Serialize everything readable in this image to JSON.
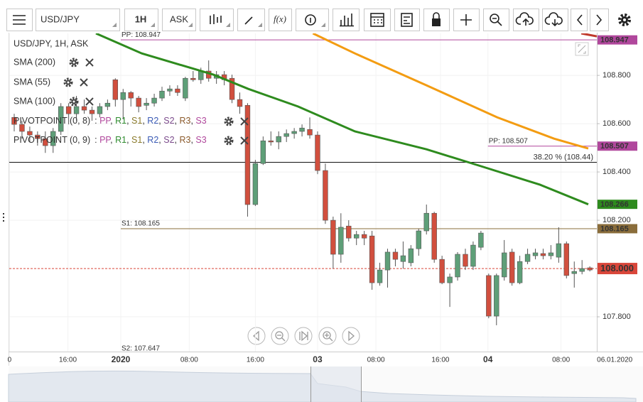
{
  "toolbar": {
    "symbol": "USD/JPY",
    "interval": "1H",
    "price_type": "ASK",
    "formula": "f(x)"
  },
  "legend": {
    "title": "USD/JPY, 1H, ASK",
    "pivots": [
      {
        "name": "PIVOTPOINT (0, 8)"
      },
      {
        "name": "PIVOTPOINT (0, 9)"
      }
    ],
    "pivot_prefix": ": ",
    "pivot_separator": ", ",
    "pivot_items": [
      {
        "text": "PP",
        "color": "#b0479c"
      },
      {
        "text": "R1",
        "color": "#2e8b2e"
      },
      {
        "text": "S1",
        "color": "#8a7a2a"
      },
      {
        "text": "R2",
        "color": "#3b5bb5"
      },
      {
        "text": "S2",
        "color": "#7b4a8b"
      },
      {
        "text": "R3",
        "color": "#8b5a2b"
      },
      {
        "text": "S3",
        "color": "#b0479c"
      }
    ]
  },
  "chart_data": {
    "type": "candlestick",
    "up_color": "#5e9f78",
    "down_color": "#d14f3e",
    "grid": true,
    "open": [
      108.626,
      108.597,
      108.568,
      108.553,
      108.538,
      108.509,
      108.568,
      108.671,
      108.641,
      108.671,
      108.656,
      108.641,
      108.671,
      108.782,
      108.7,
      108.729,
      108.706,
      108.676,
      108.685,
      108.706,
      108.735,
      108.744,
      108.706,
      108.788,
      108.782,
      108.818,
      108.788,
      108.803,
      108.788,
      108.7,
      108.676,
      108.265,
      108.435,
      108.529,
      108.524,
      108.547,
      108.559,
      108.568,
      108.576,
      108.553,
      108.406,
      108.2,
      108.059,
      108.176,
      108.126,
      108.141,
      108.135,
      107.941,
      107.994,
      108.068,
      108.029,
      108.024,
      108.082,
      108.156,
      108.229,
      108.038,
      107.941,
      107.965,
      108.059,
      108.009,
      108.088,
      107.971,
      107.803,
      107.965,
      108.068,
      107.941,
      108.029,
      108.053,
      108.062,
      108.053,
      108.047,
      108.103,
      107.979,
      107.988,
      108.003
    ],
    "high": [
      108.641,
      108.612,
      108.588,
      108.568,
      108.568,
      108.582,
      108.685,
      108.685,
      108.715,
      108.7,
      108.671,
      108.685,
      108.7,
      108.788,
      108.744,
      108.735,
      108.715,
      108.706,
      108.724,
      108.753,
      108.759,
      108.759,
      108.794,
      108.818,
      108.832,
      108.862,
      108.818,
      108.818,
      108.803,
      108.729,
      108.685,
      108.45,
      108.547,
      108.568,
      108.568,
      108.576,
      108.582,
      108.597,
      108.626,
      108.568,
      108.435,
      108.215,
      108.229,
      108.2,
      108.156,
      108.156,
      108.156,
      108.024,
      108.082,
      108.082,
      108.112,
      108.097,
      108.165,
      108.265,
      108.235,
      108.053,
      107.979,
      108.068,
      108.082,
      108.112,
      108.156,
      107.979,
      107.979,
      108.118,
      108.082,
      108.053,
      108.082,
      108.082,
      108.082,
      108.097,
      108.171,
      108.112,
      108.029,
      108.035,
      108.009
    ],
    "low": [
      108.568,
      108.538,
      108.524,
      108.509,
      108.479,
      108.479,
      108.553,
      108.597,
      108.612,
      108.641,
      108.612,
      108.626,
      108.656,
      108.671,
      108.618,
      108.671,
      108.647,
      108.656,
      108.671,
      108.694,
      108.715,
      108.715,
      108.694,
      108.774,
      108.765,
      108.774,
      108.765,
      108.759,
      108.685,
      108.641,
      108.215,
      108.259,
      108.429,
      108.509,
      108.494,
      108.524,
      108.538,
      108.547,
      108.538,
      108.391,
      108.185,
      108.0,
      108.024,
      108.112,
      108.097,
      108.097,
      107.912,
      107.929,
      107.921,
      108.009,
      108.0,
      108.009,
      108.053,
      108.141,
      108.024,
      107.935,
      107.841,
      107.95,
      107.994,
      107.994,
      108.076,
      107.794,
      107.765,
      107.95,
      107.929,
      107.935,
      108.018,
      108.038,
      108.038,
      108.038,
      108.024,
      107.959,
      107.921,
      107.976,
      107.988
    ],
    "close": [
      108.597,
      108.568,
      108.553,
      108.538,
      108.509,
      108.568,
      108.671,
      108.641,
      108.671,
      108.656,
      108.641,
      108.671,
      108.685,
      108.7,
      108.729,
      108.706,
      108.671,
      108.685,
      108.706,
      108.735,
      108.744,
      108.729,
      108.788,
      108.782,
      108.818,
      108.788,
      108.803,
      108.782,
      108.7,
      108.671,
      108.265,
      108.435,
      108.529,
      108.524,
      108.547,
      108.559,
      108.568,
      108.582,
      108.553,
      108.406,
      108.2,
      108.059,
      108.171,
      108.126,
      108.141,
      108.126,
      107.941,
      107.994,
      108.068,
      108.038,
      108.053,
      108.082,
      108.156,
      108.229,
      108.038,
      107.941,
      107.965,
      108.059,
      108.009,
      108.097,
      108.147,
      107.803,
      107.971,
      108.065,
      107.941,
      108.029,
      108.059,
      108.065,
      108.053,
      108.065,
      108.103,
      107.971,
      107.988,
      108.0,
      107.994
    ],
    "xlim": [
      -0.64,
      74.9
    ],
    "ylim": [
      107.656,
      108.974
    ],
    "xticks": [
      {
        "value": -0.6,
        "label": "0"
      },
      {
        "value": 6.9,
        "label": "16:00"
      },
      {
        "value": 13.7,
        "label": "2020"
      },
      {
        "value": 22.5,
        "label": "08:00"
      },
      {
        "value": 31,
        "label": "16:00"
      },
      {
        "value": 39,
        "label": "03"
      },
      {
        "value": 46.5,
        "label": "08:00"
      },
      {
        "value": 54.8,
        "label": "16:00"
      },
      {
        "value": 60.9,
        "label": "04"
      },
      {
        "value": 70.3,
        "label": "08:00"
      },
      {
        "value": 77.2,
        "label": "06.01.2020"
      }
    ],
    "yticks": [
      {
        "value": 108.8,
        "label": "108.800"
      },
      {
        "value": 108.6,
        "label": "108.600"
      },
      {
        "value": 108.4,
        "label": "108.400"
      },
      {
        "value": 108.2,
        "label": "108.200"
      },
      {
        "value": 107.8,
        "label": "107.800"
      }
    ],
    "sma": [
      {
        "name": "SMA (200)",
        "color": "#c0392b",
        "x": [
          72.9,
          74.9
        ],
        "values": [
          108.974,
          108.962
        ]
      },
      {
        "name": "SMA (55)",
        "color": "#2e8b1e",
        "tag": true,
        "x": [
          10.5,
          16.4,
          25.6,
          30.1,
          36.5,
          43.8,
          53,
          60.3,
          67.6,
          73.8
        ],
        "values": [
          108.974,
          108.891,
          108.803,
          108.744,
          108.671,
          108.568,
          108.494,
          108.421,
          108.347,
          108.266
        ]
      },
      {
        "name": "SMA (100)",
        "color": "#f39c12",
        "x": [
          38.4,
          43.8,
          53,
          62.1,
          69.4,
          73.8
        ],
        "values": [
          108.974,
          108.891,
          108.759,
          108.626,
          108.538,
          108.497
        ]
      }
    ],
    "levels": [
      {
        "label": "PP: 108.947",
        "value": 108.947,
        "color": "#b0479c",
        "start": 13.7,
        "tag": true
      },
      {
        "label": "PP: 108.507",
        "value": 108.507,
        "color": "#b0479c",
        "start": 60.9,
        "tag": true
      },
      {
        "label": "38.20 % (108.44)",
        "value": 108.44,
        "color": "#111111",
        "start": -0.64,
        "label_right": true
      },
      {
        "label": "S1: 108.165",
        "value": 108.165,
        "color": "#8a6d3b",
        "start": 13.7,
        "tag": true
      },
      {
        "label": "S2: 107.647",
        "value": 107.647,
        "color": "#7b4a8b",
        "start": 13.7
      },
      {
        "value": 108.0,
        "value_label": "108.000",
        "color": "#d9463a",
        "start": -0.64,
        "dashed": true,
        "tag": true
      }
    ]
  }
}
